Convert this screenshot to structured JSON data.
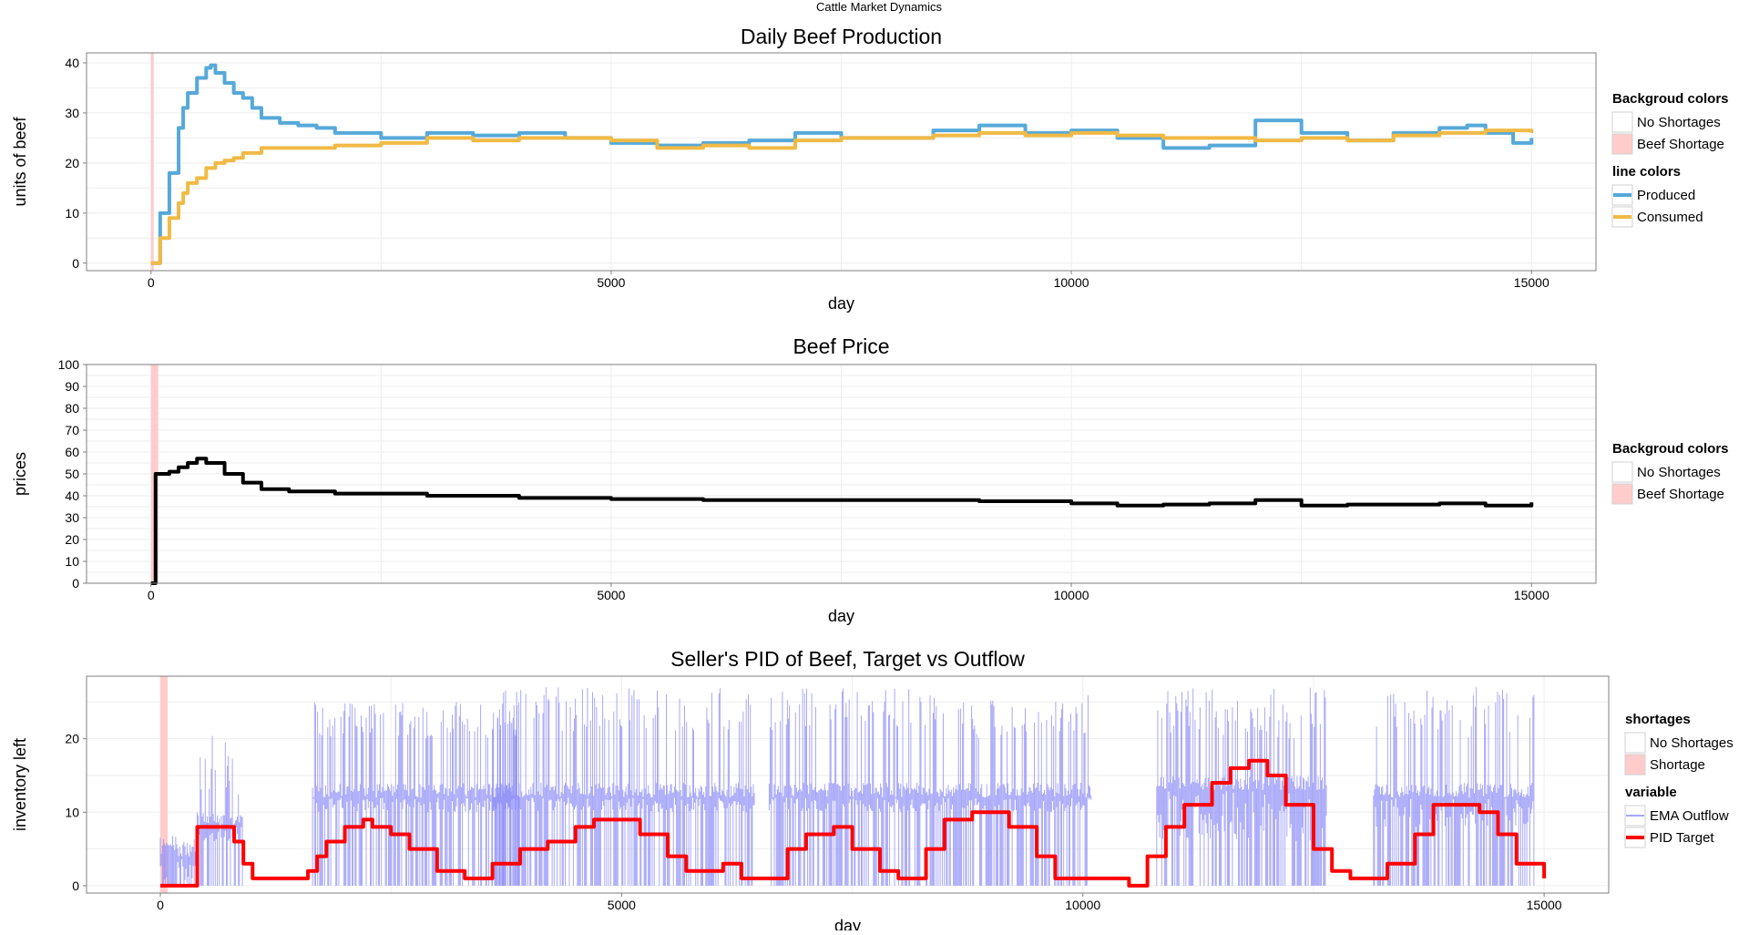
{
  "figure": {
    "suptitle": "Cattle Market Dynamics"
  },
  "chart_data": [
    {
      "type": "line",
      "title": "Daily Beef Production",
      "xlabel": "day",
      "ylabel": "units of beef",
      "xlim": [
        -700,
        15700
      ],
      "ylim": [
        -1.5,
        42
      ],
      "xticks": [
        0,
        5000,
        10000,
        15000
      ],
      "yticks": [
        0,
        10,
        20,
        30,
        40
      ],
      "grid": true,
      "shortage_band": [
        0,
        30
      ],
      "legend": {
        "placement": "right",
        "groups": [
          {
            "title": "Backgroud colors",
            "items": [
              {
                "label": "No Shortages",
                "swatch": "#ffffff"
              },
              {
                "label": "Beef Shortage",
                "swatch": "#ffcccc"
              }
            ]
          },
          {
            "title": "line colors",
            "items": [
              {
                "label": "Produced",
                "swatch": "#56a9d9"
              },
              {
                "label": "Consumed",
                "swatch": "#f0ba45"
              }
            ]
          }
        ]
      },
      "series": [
        {
          "name": "Produced",
          "color": "#56a9d9",
          "x": [
            0,
            100,
            200,
            300,
            350,
            400,
            500,
            600,
            650,
            700,
            800,
            900,
            1000,
            1100,
            1200,
            1400,
            1600,
            1800,
            2000,
            2500,
            3000,
            3500,
            4000,
            4500,
            5000,
            5500,
            6000,
            6500,
            7000,
            7500,
            8000,
            8500,
            9000,
            9500,
            10000,
            10500,
            11000,
            11500,
            12000,
            12500,
            13000,
            13500,
            14000,
            14300,
            14500,
            14800,
            15000
          ],
          "y": [
            0,
            10,
            18,
            27,
            31,
            34,
            37,
            39,
            39.5,
            38,
            36,
            34,
            33,
            31,
            29,
            28,
            27.5,
            27,
            26,
            25,
            26,
            25.5,
            26,
            25,
            24,
            23.5,
            24,
            24.5,
            26,
            25,
            25,
            26.5,
            27.5,
            26,
            26.5,
            25,
            23,
            23.5,
            28.5,
            26,
            24.5,
            26,
            27,
            27.5,
            26,
            24,
            25
          ]
        },
        {
          "name": "Consumed",
          "color": "#f0ba45",
          "x": [
            0,
            100,
            200,
            300,
            350,
            400,
            500,
            600,
            700,
            800,
            900,
            1000,
            1200,
            1500,
            2000,
            2500,
            3000,
            3500,
            4000,
            4500,
            5000,
            5500,
            6000,
            6500,
            7000,
            7500,
            8000,
            8500,
            9000,
            9500,
            10000,
            10500,
            11000,
            11500,
            12000,
            12500,
            13000,
            13500,
            14000,
            14500,
            15000
          ],
          "y": [
            0,
            5,
            9,
            12,
            14,
            16,
            17,
            19,
            20,
            20.5,
            21,
            22,
            23,
            23,
            23.5,
            24,
            25,
            24.5,
            25,
            25,
            24.5,
            23,
            23.5,
            23,
            24.5,
            25,
            25,
            25.5,
            26,
            25.5,
            26,
            25.5,
            25,
            25,
            24.5,
            25,
            24.5,
            25.5,
            26,
            26.5,
            26
          ]
        }
      ]
    },
    {
      "type": "line",
      "title": "Beef Price",
      "xlabel": "day",
      "ylabel": "prices",
      "xlim": [
        -700,
        15700
      ],
      "ylim": [
        0,
        100
      ],
      "xticks": [
        0,
        5000,
        10000,
        15000
      ],
      "yticks": [
        0,
        10,
        20,
        30,
        40,
        50,
        60,
        70,
        80,
        90,
        100
      ],
      "grid": true,
      "shortage_band": [
        0,
        80
      ],
      "legend": {
        "placement": "right",
        "groups": [
          {
            "title": "Backgroud colors",
            "items": [
              {
                "label": "No Shortages",
                "swatch": "#ffffff"
              },
              {
                "label": "Beef Shortage",
                "swatch": "#ffcccc"
              }
            ]
          }
        ]
      },
      "series": [
        {
          "name": "",
          "color": "#000000",
          "x": [
            0,
            30,
            50,
            100,
            200,
            300,
            400,
            500,
            600,
            800,
            1000,
            1200,
            1500,
            2000,
            3000,
            4000,
            5000,
            6000,
            7000,
            8000,
            9000,
            10000,
            10500,
            11000,
            11500,
            12000,
            12500,
            13000,
            14000,
            14500,
            15000
          ],
          "y": [
            0,
            0,
            50,
            50,
            51,
            53,
            55,
            57,
            55,
            50,
            46,
            43,
            42,
            41,
            40,
            39,
            38.5,
            38,
            38,
            38,
            37.5,
            36.5,
            35.5,
            36,
            36.5,
            38,
            35.5,
            36,
            36.5,
            35.5,
            37
          ]
        }
      ]
    },
    {
      "type": "line",
      "title": "Seller's PID of Beef, Target vs Outflow",
      "xlabel": "day",
      "ylabel": "inventory left",
      "xlim": [
        -800,
        15700
      ],
      "ylim": [
        -1,
        28.5
      ],
      "xticks": [
        0,
        5000,
        10000,
        15000
      ],
      "yticks": [
        0,
        10,
        20
      ],
      "grid": true,
      "shortage_band": [
        0,
        80
      ],
      "legend": {
        "placement": "right",
        "groups": [
          {
            "title": "shortages",
            "items": [
              {
                "label": "No Shortages",
                "swatch": "#ffffff"
              },
              {
                "label": "Shortage",
                "swatch": "#ffcccc"
              }
            ]
          },
          {
            "title": "variable",
            "items": [
              {
                "label": "EMA Outflow",
                "swatch": "#8b8bf7"
              },
              {
                "label": "PID Target",
                "swatch": "#ff0000"
              }
            ]
          }
        ]
      },
      "series": [
        {
          "name": "EMA Outflow",
          "color": "#8b8bf7",
          "kind": "dense",
          "regions": [
            {
              "x0": 0,
              "x1": 400,
              "base": [
                0,
                4
              ],
              "top": [
                4,
                8
              ]
            },
            {
              "x0": 400,
              "x1": 900,
              "base": [
                6,
                8
              ],
              "top": [
                12,
                21
              ]
            },
            {
              "x0": 1650,
              "x1": 3900,
              "base": [
                10,
                12
              ],
              "top": [
                20,
                25
              ]
            },
            {
              "x0": 3600,
              "x1": 6450,
              "base": [
                10,
                12
              ],
              "top": [
                21,
                27
              ]
            },
            {
              "x0": 6600,
              "x1": 8300,
              "base": [
                10,
                12
              ],
              "top": [
                21,
                27
              ]
            },
            {
              "x0": 8300,
              "x1": 10100,
              "base": [
                10,
                12
              ],
              "top": [
                20,
                26
              ]
            },
            {
              "x0": 10800,
              "x1": 12650,
              "base": [
                6,
                13
              ],
              "top": [
                20,
                27
              ]
            },
            {
              "x0": 13150,
              "x1": 14900,
              "base": [
                8,
                12
              ],
              "top": [
                20,
                27
              ]
            }
          ]
        },
        {
          "name": "PID Target",
          "color": "#ff0000",
          "x": [
            0,
            350,
            400,
            650,
            800,
            900,
            1000,
            1500,
            1600,
            1700,
            1800,
            2000,
            2200,
            2300,
            2500,
            2700,
            3000,
            3300,
            3600,
            3700,
            3900,
            4000,
            4200,
            4500,
            4700,
            5000,
            5200,
            5500,
            5700,
            6000,
            6100,
            6300,
            6500,
            6800,
            7000,
            7300,
            7500,
            7800,
            8000,
            8100,
            8300,
            8500,
            8800,
            9000,
            9200,
            9500,
            9700,
            10000,
            10300,
            10500,
            10700,
            10900,
            11100,
            11400,
            11600,
            11800,
            12000,
            12200,
            12500,
            12700,
            12900,
            13100,
            13300,
            13600,
            13800,
            14000,
            14300,
            14500,
            14700,
            15000
          ],
          "y": [
            0,
            0,
            8,
            8,
            6,
            3,
            1,
            1,
            2,
            4,
            6,
            8,
            9,
            8,
            7,
            5,
            2,
            1,
            3,
            3,
            5,
            5,
            6,
            8,
            9,
            9,
            7,
            4,
            2,
            2,
            3,
            1,
            1,
            5,
            7,
            8,
            5,
            2,
            1,
            1,
            5,
            9,
            10,
            10,
            8,
            4,
            1,
            1,
            1,
            0,
            4,
            8,
            11,
            14,
            16,
            17,
            15,
            11,
            5,
            2,
            1,
            1,
            3,
            7,
            11,
            11,
            10,
            7,
            3,
            1
          ]
        }
      ]
    }
  ]
}
